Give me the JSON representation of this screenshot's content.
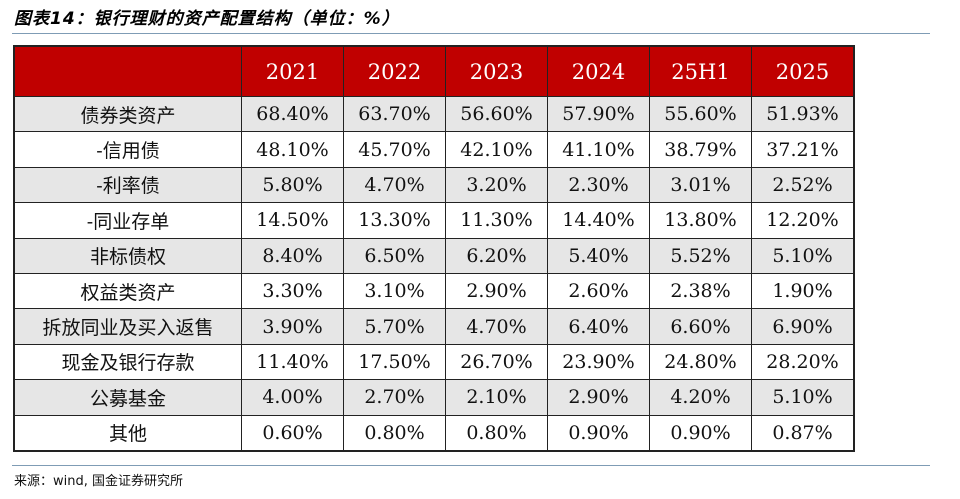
{
  "title": "图表14：银行理财的资产配置结构（单位：%）",
  "colors": {
    "header_bg": "#c00000",
    "alt_row_bg": "#e6e6e6",
    "rule": "#7f9cb5"
  },
  "table": {
    "columns": [
      "",
      "2021",
      "2022",
      "2023",
      "2024",
      "25H1",
      "2025"
    ],
    "rows": [
      {
        "label": "债券类资产",
        "values": [
          "68.40%",
          "63.70%",
          "56.60%",
          "57.90%",
          "55.60%",
          "51.93%"
        ]
      },
      {
        "label": "-信用债",
        "values": [
          "48.10%",
          "45.70%",
          "42.10%",
          "41.10%",
          "38.79%",
          "37.21%"
        ]
      },
      {
        "label": "-利率债",
        "values": [
          "5.80%",
          "4.70%",
          "3.20%",
          "2.30%",
          "3.01%",
          "2.52%"
        ]
      },
      {
        "label": "-同业存单",
        "values": [
          "14.50%",
          "13.30%",
          "11.30%",
          "14.40%",
          "13.80%",
          "12.20%"
        ]
      },
      {
        "label": "非标债权",
        "values": [
          "8.40%",
          "6.50%",
          "6.20%",
          "5.40%",
          "5.52%",
          "5.10%"
        ]
      },
      {
        "label": "权益类资产",
        "values": [
          "3.30%",
          "3.10%",
          "2.90%",
          "2.60%",
          "2.38%",
          "1.90%"
        ]
      },
      {
        "label": "拆放同业及买入返售",
        "values": [
          "3.90%",
          "5.70%",
          "4.70%",
          "6.40%",
          "6.60%",
          "6.90%"
        ]
      },
      {
        "label": "现金及银行存款",
        "values": [
          "11.40%",
          "17.50%",
          "26.70%",
          "23.90%",
          "24.80%",
          "28.20%"
        ]
      },
      {
        "label": "公募基金",
        "values": [
          "4.00%",
          "2.70%",
          "2.10%",
          "2.90%",
          "4.20%",
          "5.10%"
        ]
      },
      {
        "label": "其他",
        "values": [
          "0.60%",
          "0.80%",
          "0.80%",
          "0.90%",
          "0.90%",
          "0.87%"
        ]
      }
    ]
  },
  "source": "来源：wind, 国金证券研究所"
}
